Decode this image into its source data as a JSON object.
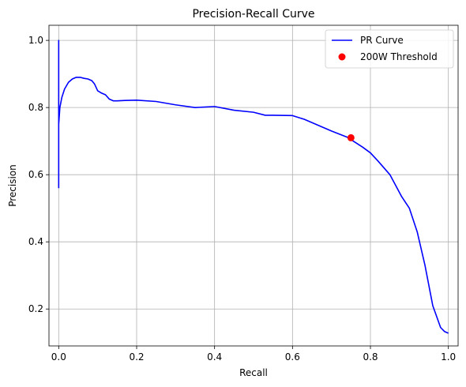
{
  "chart_data": {
    "type": "line",
    "title": "Precision-Recall Curve",
    "xlabel": "Recall",
    "ylabel": "Precision",
    "xlim": [
      -0.025,
      1.025
    ],
    "ylim": [
      0.09,
      1.045
    ],
    "xticks": [
      0.0,
      0.2,
      0.4,
      0.6,
      0.8,
      1.0
    ],
    "xtick_labels": [
      "0.0",
      "0.2",
      "0.4",
      "0.6",
      "0.8",
      "1.0"
    ],
    "yticks": [
      0.2,
      0.4,
      0.6,
      0.8,
      1.0
    ],
    "ytick_labels": [
      "0.2",
      "0.4",
      "0.6",
      "0.8",
      "1.0"
    ],
    "grid": true,
    "legend_position": "top-right",
    "series": [
      {
        "name": "PR Curve",
        "kind": "line",
        "color": "#0000ff",
        "x": [
          0.0,
          0.0,
          0.0,
          0.0,
          0.003,
          0.008,
          0.015,
          0.025,
          0.035,
          0.045,
          0.055,
          0.065,
          0.075,
          0.085,
          0.092,
          0.1,
          0.11,
          0.12,
          0.13,
          0.14,
          0.15,
          0.17,
          0.2,
          0.25,
          0.3,
          0.35,
          0.4,
          0.45,
          0.5,
          0.53,
          0.55,
          0.6,
          0.63,
          0.66,
          0.7,
          0.74,
          0.76,
          0.78,
          0.8,
          0.82,
          0.85,
          0.88,
          0.9,
          0.92,
          0.94,
          0.96,
          0.98,
          0.99,
          1.0
        ],
        "y": [
          0.56,
          1.0,
          0.67,
          0.75,
          0.8,
          0.83,
          0.855,
          0.875,
          0.885,
          0.89,
          0.89,
          0.887,
          0.885,
          0.88,
          0.87,
          0.85,
          0.843,
          0.838,
          0.825,
          0.82,
          0.82,
          0.821,
          0.822,
          0.818,
          0.808,
          0.8,
          0.803,
          0.792,
          0.786,
          0.777,
          0.777,
          0.776,
          0.765,
          0.75,
          0.73,
          0.712,
          0.697,
          0.682,
          0.665,
          0.64,
          0.6,
          0.535,
          0.5,
          0.43,
          0.33,
          0.21,
          0.145,
          0.133,
          0.128
        ]
      },
      {
        "name": "200W Threshold",
        "kind": "scatter",
        "color": "#ff0000",
        "x": [
          0.75
        ],
        "y": [
          0.71
        ]
      }
    ]
  }
}
